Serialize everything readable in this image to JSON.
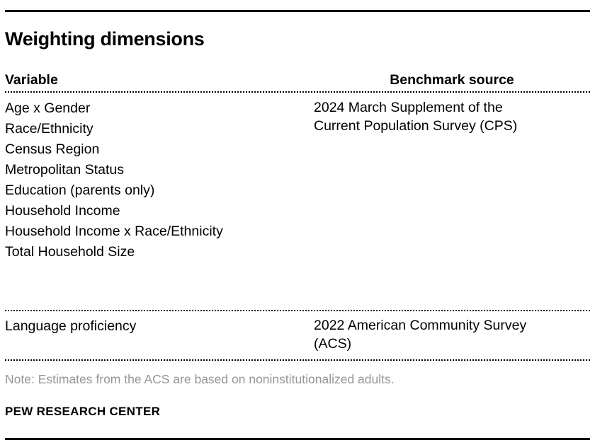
{
  "chart_data": {
    "type": "table",
    "title": "Weighting dimensions",
    "columns": [
      "Variable",
      "Benchmark source"
    ],
    "rows": [
      {
        "variables": [
          "Age x Gender",
          "Race/Ethnicity",
          "Census Region",
          "Metropolitan Status",
          "Education (parents only)",
          "Household Income",
          "Household Income x Race/Ethnicity",
          "Total Household Size"
        ],
        "benchmark_source": "2024 March Supplement of the Current Population Survey (CPS)"
      },
      {
        "variables": [
          "Language proficiency"
        ],
        "benchmark_source": "2022 American Community Survey (ACS)"
      }
    ],
    "note": "Note: Estimates from the ACS are based on noninstitutionalized adults.",
    "source": "PEW RESEARCH CENTER"
  },
  "colors": {
    "text": "#000000",
    "note_text": "#969696",
    "rule": "#000000"
  }
}
